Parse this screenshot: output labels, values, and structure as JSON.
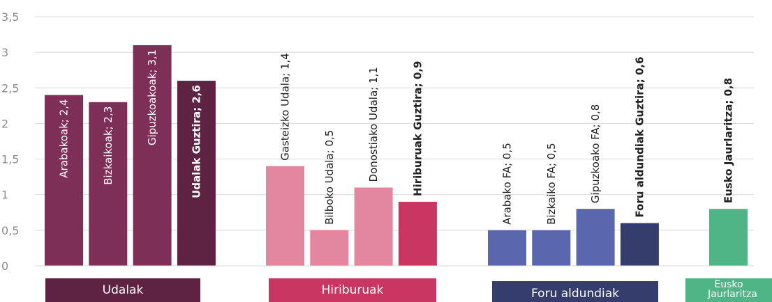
{
  "chart_data": {
    "type": "bar",
    "ylim": [
      0,
      3.5
    ],
    "yticks": [
      "0",
      "0,5",
      "1",
      "1,5",
      "2",
      "2,5",
      "3",
      "3,5"
    ],
    "grid": true,
    "groups": [
      {
        "name": "Udalak",
        "color": "#5e2243",
        "bars": [
          {
            "label": "Arabakoak; 2,4",
            "value": 2.4,
            "color": "#7d2f57",
            "bold": false
          },
          {
            "label": "Bizkaikoak; 2,3",
            "value": 2.3,
            "color": "#7d2f57",
            "bold": false
          },
          {
            "label": "Gipuzkoakoak; 3,1",
            "value": 3.1,
            "color": "#7d2f57",
            "bold": false
          },
          {
            "label": "Udalak Guztira; 2,6",
            "value": 2.6,
            "color": "#5e2243",
            "bold": true
          }
        ]
      },
      {
        "name": "Hiriburuak",
        "color": "#c93662",
        "bars": [
          {
            "label": "Gasteizko Udala; 1,4",
            "value": 1.4,
            "color": "#e386a0",
            "bold": false
          },
          {
            "label": "Bilboko Udala; 0,5",
            "value": 0.5,
            "color": "#e386a0",
            "bold": false
          },
          {
            "label": "Donostiako Udala; 1,1",
            "value": 1.1,
            "color": "#e386a0",
            "bold": false
          },
          {
            "label": "Hiriburuak Guztira; 0,9",
            "value": 0.9,
            "color": "#c93662",
            "bold": true
          }
        ]
      },
      {
        "name": "Foru aldundiak",
        "color": "#353d6c",
        "bars": [
          {
            "label": "Arabako FA; 0,5",
            "value": 0.5,
            "color": "#5a67ae",
            "bold": false
          },
          {
            "label": "Bizkaiko FA; 0,5",
            "value": 0.5,
            "color": "#5a67ae",
            "bold": false
          },
          {
            "label": "Gipuzkoako FA; 0,8",
            "value": 0.8,
            "color": "#5a67ae",
            "bold": false
          },
          {
            "label": "Foru aldundiak Guztira; 0,6",
            "value": 0.6,
            "color": "#353d6c",
            "bold": true
          }
        ]
      },
      {
        "name": "Eusko Jaurlaritza",
        "color": "#4fb587",
        "bars": [
          {
            "label": "Eusko Jaurlaritza; 0,8",
            "value": 0.8,
            "color": "#4fb587",
            "bold": true
          }
        ]
      }
    ]
  }
}
